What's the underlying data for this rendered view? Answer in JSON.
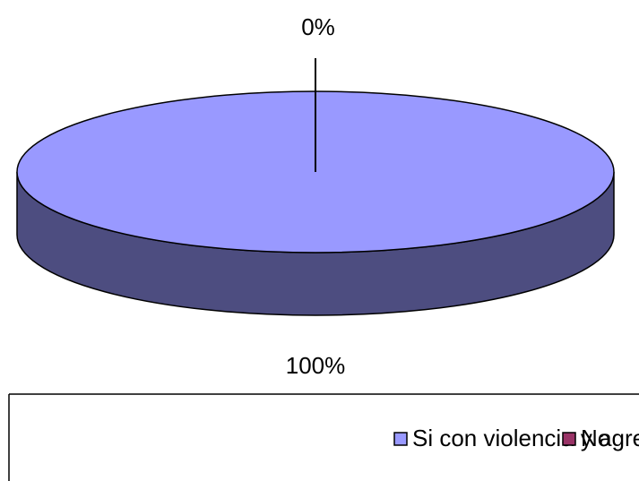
{
  "chart_data": {
    "type": "pie",
    "categories": [
      "Si con violencia y agresividad",
      "No"
    ],
    "values": [
      100,
      0
    ],
    "value_labels": [
      "100%",
      "0%"
    ],
    "colors": [
      "#9999ff",
      "#993366"
    ],
    "legend": "bottom"
  }
}
